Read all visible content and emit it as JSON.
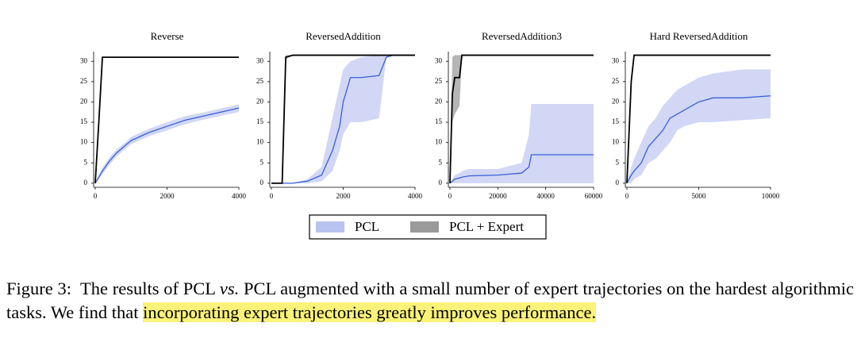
{
  "chart_data": [
    {
      "type": "line",
      "title": "Reverse",
      "x": [
        0,
        100,
        200,
        400,
        600,
        800,
        1000,
        1500,
        2000,
        2500,
        3000,
        3500,
        4000
      ],
      "xlim": [
        0,
        4000
      ],
      "xticks": [
        0,
        2000,
        4000
      ],
      "ylim": [
        -1,
        32
      ],
      "yticks": [
        0,
        5,
        10,
        15,
        20,
        25,
        30
      ],
      "series": [
        {
          "color": "#3a5fd6",
          "band_color": "#c9d0f2",
          "values": [
            0,
            1.5,
            3,
            5.5,
            7.5,
            9,
            10.5,
            12.5,
            14,
            15.5,
            16.5,
            17.5,
            18.5
          ],
          "band_low": [
            0,
            1,
            2.2,
            4.6,
            6.6,
            8.2,
            9.6,
            11.6,
            13,
            14.5,
            15.6,
            16.6,
            17.5
          ],
          "band_high": [
            0,
            2,
            3.8,
            6.4,
            8.4,
            9.8,
            11.4,
            13.4,
            15,
            16.5,
            17.4,
            18.4,
            19.4
          ]
        },
        {
          "color": "#000000",
          "band_color": "#a8a8a8",
          "values": [
            0,
            15,
            31,
            31,
            31,
            31,
            31,
            31,
            31,
            31,
            31,
            31,
            31
          ],
          "band_low": [
            0,
            14,
            31,
            31,
            31,
            31,
            31,
            31,
            31,
            31,
            31,
            31,
            31
          ],
          "band_high": [
            0,
            16,
            31,
            31,
            31,
            31,
            31,
            31,
            31,
            31,
            31,
            31,
            31
          ]
        }
      ]
    },
    {
      "type": "line",
      "title": "ReversedAddition",
      "x": [
        0,
        300,
        400,
        600,
        1000,
        1400,
        1700,
        1900,
        2000,
        2200,
        2500,
        3000,
        3200,
        3400,
        4000
      ],
      "xlim": [
        0,
        4000
      ],
      "xticks": [
        0,
        2000,
        4000
      ],
      "ylim": [
        -1,
        32
      ],
      "yticks": [
        0,
        5,
        10,
        15,
        20,
        25,
        30
      ],
      "series": [
        {
          "color": "#3a5fd6",
          "band_color": "#c9d0f2",
          "values": [
            0,
            0,
            0,
            0,
            0.5,
            2,
            8,
            14,
            20,
            26,
            26,
            26.5,
            31,
            31.5,
            31.5
          ],
          "band_low": [
            0,
            0,
            0,
            0,
            0,
            0.5,
            3,
            8,
            12,
            15,
            15,
            16,
            31,
            31.5,
            31.5
          ],
          "band_high": [
            0,
            0,
            0,
            0,
            1,
            4,
            16,
            24,
            28,
            30,
            31,
            31.5,
            31.5,
            31.5,
            31.5
          ]
        },
        {
          "color": "#000000",
          "band_color": "#a8a8a8",
          "values": [
            0,
            0,
            31,
            31.5,
            31.5,
            31.5,
            31.5,
            31.5,
            31.5,
            31.5,
            31.5,
            31.5,
            31.5,
            31.5,
            31.5
          ],
          "band_low": [
            0,
            0,
            30.5,
            31.5,
            31.5,
            31.5,
            31.5,
            31.5,
            31.5,
            31.5,
            31.5,
            31.5,
            31.5,
            31.5,
            31.5
          ],
          "band_high": [
            0,
            0,
            31.5,
            31.5,
            31.5,
            31.5,
            31.5,
            31.5,
            31.5,
            31.5,
            31.5,
            31.5,
            31.5,
            31.5,
            31.5
          ]
        }
      ]
    },
    {
      "type": "line",
      "title": "ReversedAddition3",
      "x": [
        0,
        1000,
        2000,
        4000,
        5000,
        8000,
        20000,
        30000,
        33000,
        34000,
        40000,
        60000
      ],
      "xlim": [
        0,
        60000
      ],
      "xticks": [
        0,
        20000,
        40000,
        60000
      ],
      "ylim": [
        -1,
        32
      ],
      "yticks": [
        0,
        5,
        10,
        15,
        20,
        25,
        30
      ],
      "series": [
        {
          "color": "#3a5fd6",
          "band_color": "#c9d0f2",
          "values": [
            0,
            0.5,
            1,
            1.3,
            1.5,
            1.8,
            2,
            2.5,
            4,
            7,
            7,
            7
          ],
          "band_low": [
            0,
            0,
            0,
            0,
            0,
            0,
            0,
            0,
            0,
            0,
            0,
            0
          ],
          "band_high": [
            0,
            1,
            2,
            2.5,
            3,
            3.5,
            3.5,
            5,
            12,
            19.5,
            19.5,
            19.5
          ]
        },
        {
          "color": "#000000",
          "band_color": "#a8a8a8",
          "values": [
            0,
            22,
            26,
            26,
            31.5,
            31.5,
            31.5,
            31.5,
            31.5,
            31.5,
            31.5,
            31.5
          ],
          "band_low": [
            0,
            15,
            17,
            19,
            31.5,
            31.5,
            31.5,
            31.5,
            31.5,
            31.5,
            31.5,
            31.5
          ],
          "band_high": [
            0,
            31,
            31.5,
            31.5,
            31.5,
            31.5,
            31.5,
            31.5,
            31.5,
            31.5,
            31.5,
            31.5
          ]
        }
      ]
    },
    {
      "type": "line",
      "title": "Hard ReversedAddition",
      "x": [
        0,
        300,
        500,
        1000,
        1500,
        2000,
        2500,
        3000,
        3500,
        4000,
        5000,
        6000,
        8000,
        10000
      ],
      "xlim": [
        0,
        10000
      ],
      "xticks": [
        0,
        5000,
        10000
      ],
      "ylim": [
        -1,
        32
      ],
      "yticks": [
        0,
        5,
        10,
        15,
        20,
        25,
        30
      ],
      "series": [
        {
          "color": "#3a5fd6",
          "band_color": "#c9d0f2",
          "values": [
            0,
            2,
            3,
            5,
            9,
            11,
            13,
            16,
            17,
            18,
            20,
            21,
            21,
            21.5
          ],
          "band_low": [
            0,
            0,
            1,
            2,
            5,
            6,
            8,
            10,
            13,
            14,
            15,
            15,
            15.5,
            16
          ],
          "band_high": [
            0,
            4,
            6,
            10,
            14,
            16,
            19,
            21,
            23,
            24,
            26,
            27,
            28,
            28
          ]
        },
        {
          "color": "#000000",
          "band_color": "#a8a8a8",
          "values": [
            0,
            25,
            31.5,
            31.5,
            31.5,
            31.5,
            31.5,
            31.5,
            31.5,
            31.5,
            31.5,
            31.5,
            31.5,
            31.5
          ],
          "band_low": [
            0,
            24,
            31.5,
            31.5,
            31.5,
            31.5,
            31.5,
            31.5,
            31.5,
            31.5,
            31.5,
            31.5,
            31.5,
            31.5
          ],
          "band_high": [
            0,
            26,
            31.5,
            31.5,
            31.5,
            31.5,
            31.5,
            31.5,
            31.5,
            31.5,
            31.5,
            31.5,
            31.5,
            31.5
          ]
        }
      ]
    }
  ],
  "legend": [
    {
      "name": "PCL",
      "color": "#b9c3ef"
    },
    {
      "name": "PCL + Expert",
      "color": "#9a9a9a"
    }
  ],
  "caption": {
    "label": "Figure 3:",
    "text1": "The results of PCL",
    "emph": "vs.",
    "text2": "PCL augmented with a small number of expert trajectories on the hardest algorithmic tasks. We find that",
    "highlight": "incorporating expert trajectories greatly improves performance."
  }
}
